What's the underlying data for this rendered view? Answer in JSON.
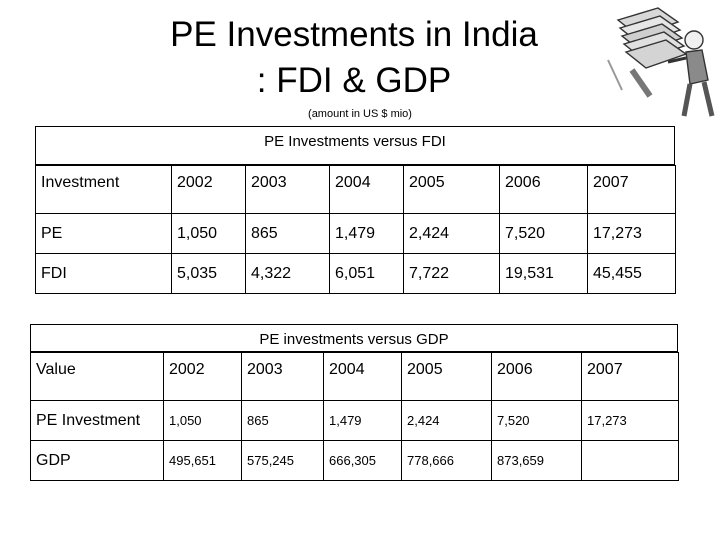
{
  "slide": {
    "title_line1": "PE Investments in India",
    "title_line2": ": FDI & GDP",
    "subtitle": "(amount in US $ mio)"
  },
  "table_fdi": {
    "title": "PE Investments versus FDI",
    "header": [
      "Investment",
      "2002",
      "2003",
      "2004",
      "2005",
      "2006",
      "2007"
    ],
    "rows": [
      [
        "PE",
        "1,050",
        "865",
        "1,479",
        "2,424",
        "7,520",
        "17,273"
      ],
      [
        "FDI",
        "5,035",
        "4,322",
        "6,051",
        "7,722",
        "19,531",
        "45,455"
      ]
    ]
  },
  "table_gdp": {
    "title": "PE investments versus GDP",
    "header": [
      "Value",
      "2002",
      "2003",
      "2004",
      "2005",
      "2006",
      "2007"
    ],
    "rows": [
      [
        "PE Investment",
        "1,050",
        "865",
        "1,479",
        "2,424",
        "7,520",
        "17,273"
      ],
      [
        "GDP",
        "495,651",
        "575,245",
        "666,305",
        "778,666",
        "873,659",
        ""
      ]
    ]
  },
  "icons": {
    "clipart": "man-carrying-money-stack-icon"
  }
}
